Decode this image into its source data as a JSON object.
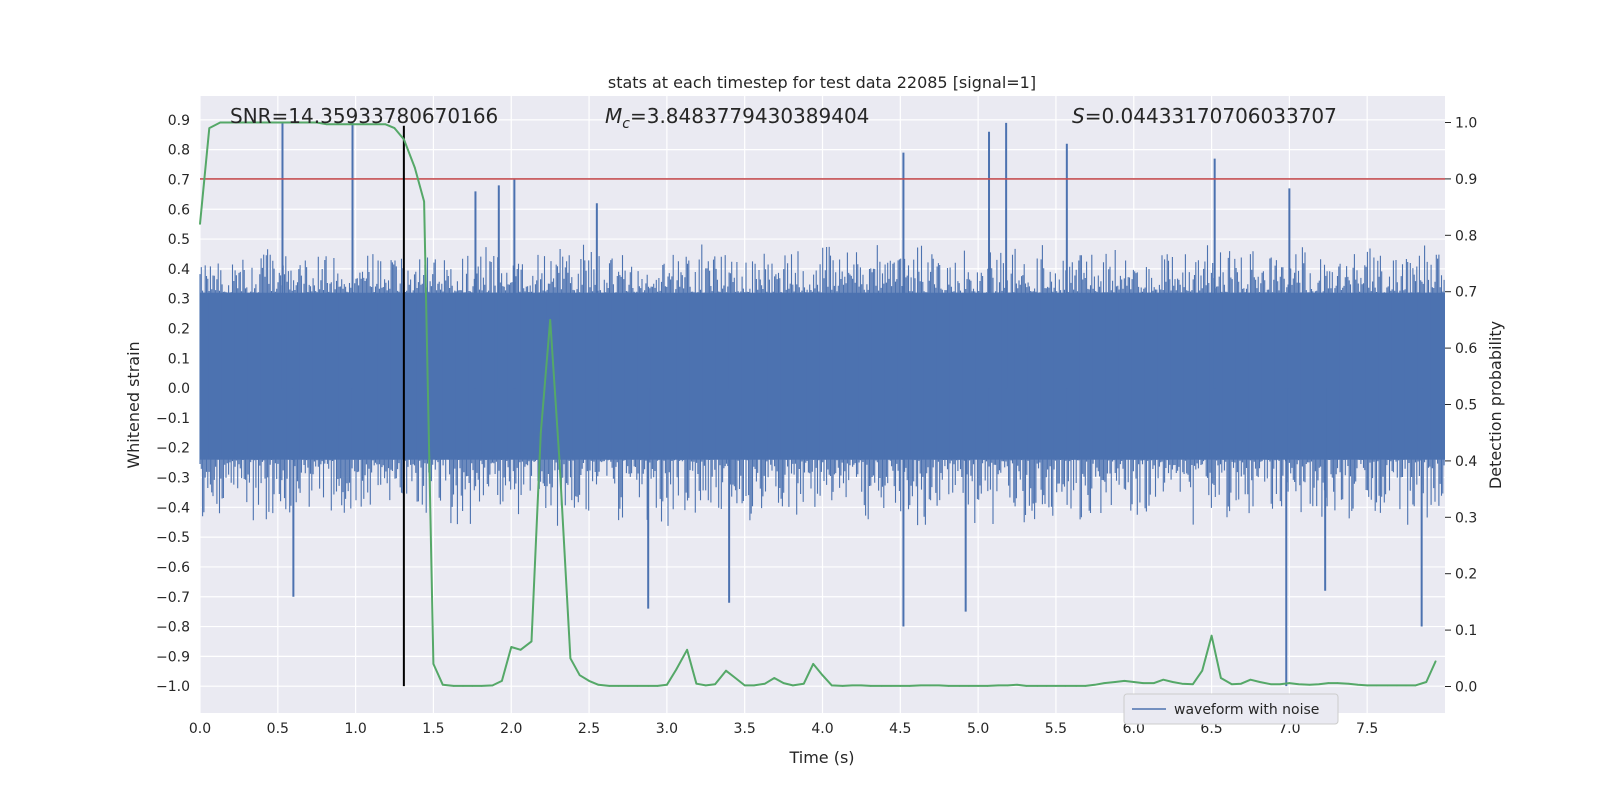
{
  "chart_data": {
    "type": "line",
    "title": "stats at each timestep for test data 22085 [signal=1]",
    "xlabel": "Time (s)",
    "ylabel": "Whitened strain",
    "ylabel_right": "Detection probability",
    "xlim": [
      0.0,
      8.0
    ],
    "ylim": [
      -1.09,
      0.98
    ],
    "ylim_right": [
      -0.047,
      1.047
    ],
    "grid": true,
    "legend_position": "lower-right",
    "x_ticks": [
      "0.0",
      "0.5",
      "1.0",
      "1.5",
      "2.0",
      "2.5",
      "3.0",
      "3.5",
      "4.0",
      "4.5",
      "5.0",
      "5.5",
      "6.0",
      "6.5",
      "7.0",
      "7.5"
    ],
    "y_ticks": [
      "0.9",
      "0.8",
      "0.7",
      "0.6",
      "0.5",
      "0.4",
      "0.3",
      "0.2",
      "0.1",
      "0.0",
      "−0.1",
      "−0.2",
      "−0.3",
      "−0.4",
      "−0.5",
      "−0.6",
      "−0.7",
      "−0.8",
      "−0.9",
      "−1.0"
    ],
    "y_ticks_right": [
      "1.0",
      "0.9",
      "0.8",
      "0.7",
      "0.6",
      "0.5",
      "0.4",
      "0.3",
      "0.2",
      "0.1",
      "0.0"
    ],
    "annotations": {
      "snr": "SNR=14.35933780670166",
      "mc_symbol": "M",
      "mc_sub": "c",
      "mc_value": "=3.8483779430389404",
      "s_symbol": "S",
      "s_value": "=0.04433170706033707"
    },
    "threshold": {
      "value": 0.9,
      "axis": "right",
      "color": "#c44e52"
    },
    "marker_line": {
      "x": 1.31,
      "ymin": -1.0,
      "ymax": 0.88,
      "color": "#000000"
    },
    "series": [
      {
        "name": "waveform with noise",
        "axis": "left",
        "color": "#4c72b0",
        "band_quantiles": {
          "p_low": -0.24,
          "p_high": 0.32,
          "typical_min": -0.42,
          "typical_max": 0.45
        },
        "peaks": [
          {
            "x": 0.53,
            "y": 0.89
          },
          {
            "x": 0.98,
            "y": 0.89
          },
          {
            "x": 1.77,
            "y": 0.66
          },
          {
            "x": 1.92,
            "y": 0.68
          },
          {
            "x": 2.02,
            "y": 0.7
          },
          {
            "x": 2.55,
            "y": 0.62
          },
          {
            "x": 4.52,
            "y": 0.79
          },
          {
            "x": 5.07,
            "y": 0.86
          },
          {
            "x": 5.18,
            "y": 0.89
          },
          {
            "x": 5.57,
            "y": 0.82
          },
          {
            "x": 6.52,
            "y": 0.77
          },
          {
            "x": 7.0,
            "y": 0.67
          },
          {
            "x": 0.6,
            "y": -0.7
          },
          {
            "x": 2.88,
            "y": -0.74
          },
          {
            "x": 3.4,
            "y": -0.72
          },
          {
            "x": 4.52,
            "y": -0.8
          },
          {
            "x": 4.92,
            "y": -0.75
          },
          {
            "x": 6.98,
            "y": -1.0
          },
          {
            "x": 7.85,
            "y": -0.8
          },
          {
            "x": 7.23,
            "y": -0.68
          }
        ]
      },
      {
        "name": "",
        "axis": "right",
        "color": "#55a868",
        "x": [
          0.0,
          0.06,
          0.13,
          0.19,
          0.25,
          0.31,
          0.38,
          0.44,
          0.5,
          0.56,
          0.63,
          0.69,
          0.75,
          0.81,
          0.88,
          0.94,
          1.0,
          1.06,
          1.13,
          1.19,
          1.25,
          1.31,
          1.38,
          1.44,
          1.5,
          1.56,
          1.63,
          1.69,
          1.75,
          1.81,
          1.88,
          1.94,
          2.0,
          2.06,
          2.13,
          2.19,
          2.25,
          2.31,
          2.38,
          2.44,
          2.5,
          2.56,
          2.63,
          2.69,
          2.75,
          2.81,
          2.88,
          2.94,
          3.0,
          3.06,
          3.13,
          3.19,
          3.25,
          3.31,
          3.38,
          3.44,
          3.5,
          3.56,
          3.63,
          3.69,
          3.75,
          3.81,
          3.88,
          3.94,
          4.0,
          4.06,
          4.13,
          4.19,
          4.25,
          4.31,
          4.38,
          4.44,
          4.5,
          4.56,
          4.63,
          4.69,
          4.75,
          4.81,
          4.88,
          4.94,
          5.0,
          5.06,
          5.13,
          5.19,
          5.25,
          5.31,
          5.38,
          5.44,
          5.5,
          5.56,
          5.63,
          5.69,
          5.75,
          5.81,
          5.88,
          5.94,
          6.0,
          6.06,
          6.13,
          6.19,
          6.25,
          6.31,
          6.38,
          6.44,
          6.5,
          6.56,
          6.63,
          6.69,
          6.75,
          6.81,
          6.88,
          6.94,
          7.0,
          7.06,
          7.13,
          7.19,
          7.25,
          7.31,
          7.38,
          7.44,
          7.5,
          7.56,
          7.63,
          7.69,
          7.75,
          7.81,
          7.88,
          7.94
        ],
        "values": [
          0.82,
          0.99,
          1.0,
          1.0,
          1.0,
          1.0,
          1.0,
          1.0,
          1.0,
          1.0,
          1.0,
          1.0,
          1.0,
          0.997,
          0.997,
          0.997,
          0.997,
          0.997,
          0.997,
          0.997,
          0.99,
          0.97,
          0.92,
          0.86,
          0.04,
          0.003,
          0.001,
          0.001,
          0.001,
          0.001,
          0.002,
          0.01,
          0.07,
          0.065,
          0.08,
          0.45,
          0.65,
          0.4,
          0.05,
          0.02,
          0.01,
          0.003,
          0.001,
          0.001,
          0.001,
          0.001,
          0.001,
          0.001,
          0.003,
          0.03,
          0.065,
          0.005,
          0.002,
          0.004,
          0.028,
          0.015,
          0.002,
          0.002,
          0.005,
          0.015,
          0.006,
          0.002,
          0.005,
          0.04,
          0.02,
          0.002,
          0.001,
          0.002,
          0.002,
          0.001,
          0.001,
          0.001,
          0.001,
          0.001,
          0.002,
          0.002,
          0.002,
          0.001,
          0.001,
          0.001,
          0.001,
          0.001,
          0.002,
          0.002,
          0.003,
          0.001,
          0.001,
          0.001,
          0.001,
          0.001,
          0.001,
          0.001,
          0.003,
          0.006,
          0.008,
          0.01,
          0.008,
          0.006,
          0.006,
          0.012,
          0.008,
          0.005,
          0.004,
          0.028,
          0.09,
          0.015,
          0.004,
          0.005,
          0.012,
          0.008,
          0.004,
          0.004,
          0.006,
          0.004,
          0.003,
          0.004,
          0.006,
          0.006,
          0.005,
          0.003,
          0.002,
          0.002,
          0.002,
          0.002,
          0.002,
          0.002,
          0.008,
          0.045
        ]
      }
    ]
  }
}
